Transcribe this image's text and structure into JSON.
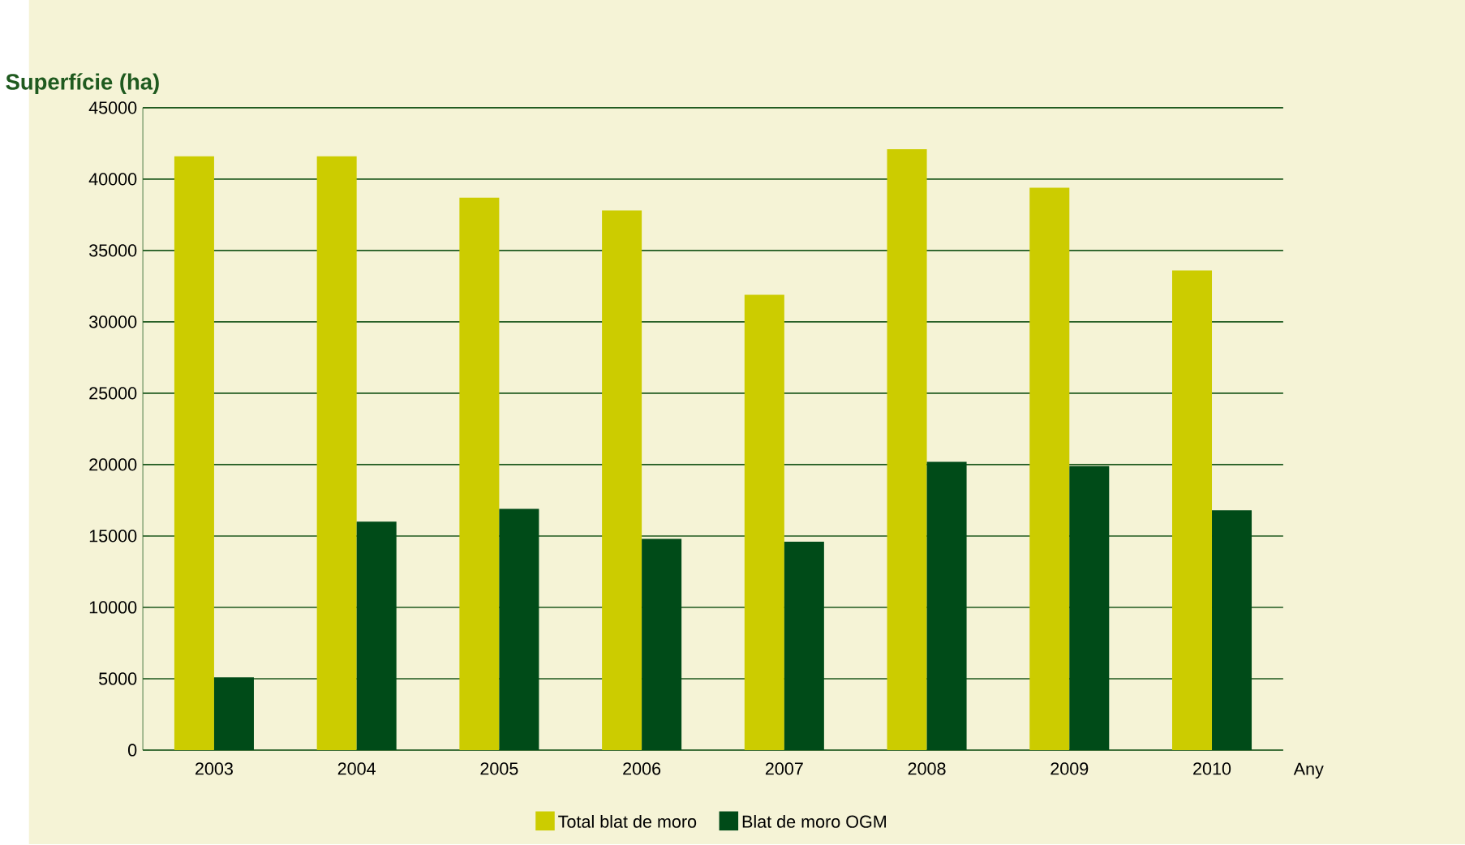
{
  "chart_data": {
    "type": "bar",
    "ylabel": "Superfície (ha)",
    "xlabel": "Any",
    "categories": [
      "2003",
      "2004",
      "2005",
      "2006",
      "2007",
      "2008",
      "2009",
      "2010"
    ],
    "series": [
      {
        "name": "Total blat de moro",
        "color": "#cccc00",
        "values": [
          41600,
          41600,
          38700,
          37800,
          31900,
          42100,
          39400,
          33600
        ]
      },
      {
        "name": "Blat de moro OGM",
        "color": "#004b18",
        "values": [
          5100,
          16000,
          16900,
          14800,
          14600,
          20200,
          19900,
          16800
        ]
      }
    ],
    "ylim": [
      0,
      45000
    ],
    "yticks": [
      0,
      5000,
      10000,
      15000,
      20000,
      25000,
      30000,
      35000,
      40000,
      45000
    ],
    "grid": "y",
    "legend": "bottom"
  }
}
